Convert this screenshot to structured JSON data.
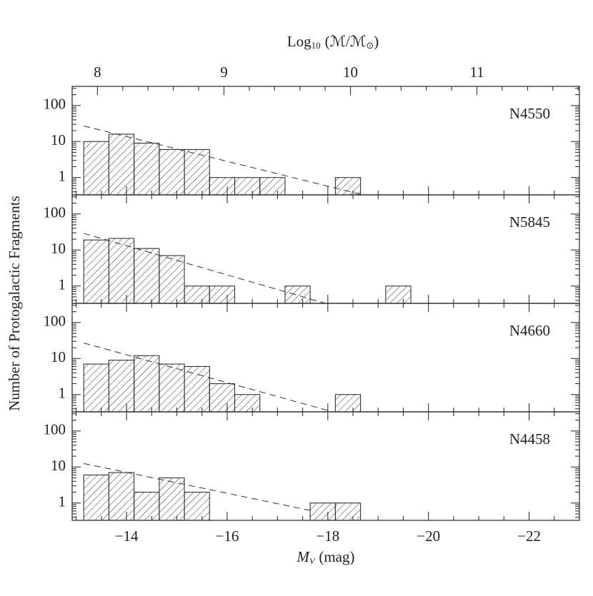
{
  "figure": {
    "y_label": "Number of Protogalactic Fragments",
    "x_label": {
      "main": "M",
      "sub": "V",
      "rest": "(mag)"
    },
    "top_label": {
      "text": "Log",
      "sub": "10",
      "text2": "(ℳ/ℳ",
      "sub2": "⊙",
      "text3": ")"
    },
    "xlim": [
      -12.92,
      -23
    ],
    "xticks": [
      {
        "value": -14,
        "label": "−14"
      },
      {
        "value": -16,
        "label": "−16"
      },
      {
        "value": -18,
        "label": "−18"
      },
      {
        "value": -20,
        "label": "−20"
      },
      {
        "value": -22,
        "label": "−22"
      }
    ],
    "xminorticks": [
      -13,
      -13.5,
      -14.5,
      -15,
      -15.5,
      -16.5,
      -17,
      -17.5,
      -18.5,
      -19,
      -19.5,
      -20.5,
      -21,
      -21.5,
      -22.5
    ],
    "top_xlim": [
      7.8,
      11.81
    ],
    "top_xticks": [
      8,
      9,
      10,
      11
    ],
    "top_xminorticks": [
      8.2,
      8.4,
      8.6,
      8.8,
      9.2,
      9.4,
      9.6,
      9.8,
      10.2,
      10.4,
      10.6,
      10.8,
      11.2,
      11.4,
      11.6,
      11.8
    ],
    "yminorticks": [
      0.4,
      0.5,
      0.6,
      0.7,
      0.8,
      0.9,
      2,
      3,
      4,
      5,
      6,
      7,
      8,
      9,
      20,
      30,
      40,
      50,
      60,
      70,
      80,
      90,
      200,
      300
    ]
  },
  "chart_data": [
    {
      "type": "histogram",
      "label": "N4550",
      "y_log": true,
      "ylim": [
        0.33,
        340
      ],
      "yticks": [
        1,
        10,
        100
      ],
      "bins": [
        -13.15,
        -13.65,
        -14.15,
        -14.65,
        -15.15,
        -15.65,
        -16.15,
        -16.65,
        -17.15,
        -17.65,
        -18.15,
        -18.65
      ],
      "counts": [
        10,
        16,
        9,
        6,
        6,
        1,
        1,
        1,
        0,
        0,
        1
      ],
      "fit": {
        "x": [
          -13.15,
          -18.7
        ],
        "y": [
          27,
          0.33
        ]
      }
    },
    {
      "type": "histogram",
      "label": "N5845",
      "y_log": true,
      "ylim": [
        0.33,
        340
      ],
      "yticks": [
        1,
        10,
        100
      ],
      "bins": [
        -13.15,
        -13.65,
        -14.15,
        -14.65,
        -15.15,
        -15.65,
        -16.15,
        -16.65,
        -17.15,
        -17.65,
        -18.15,
        -18.65,
        -19.15,
        -19.65
      ],
      "counts": [
        19,
        21,
        11,
        7,
        1,
        1,
        0,
        0,
        1,
        0,
        0,
        0,
        1
      ],
      "fit": {
        "x": [
          -13.15,
          -17.95
        ],
        "y": [
          29,
          0.33
        ]
      }
    },
    {
      "type": "histogram",
      "label": "N4660",
      "y_log": true,
      "ylim": [
        0.33,
        340
      ],
      "yticks": [
        1,
        10,
        100
      ],
      "bins": [
        -13.15,
        -13.65,
        -14.15,
        -14.65,
        -15.15,
        -15.65,
        -16.15,
        -16.65,
        -17.15,
        -17.65,
        -18.15,
        -18.65
      ],
      "counts": [
        7,
        9,
        12,
        7,
        6,
        2,
        1,
        0,
        0,
        0,
        1
      ],
      "fit": {
        "x": [
          -13.15,
          -18.1
        ],
        "y": [
          27,
          0.33
        ]
      }
    },
    {
      "type": "histogram",
      "label": "N4458",
      "y_log": true,
      "ylim": [
        0.33,
        340
      ],
      "yticks": [
        1,
        10,
        100
      ],
      "bins": [
        -13.15,
        -13.65,
        -14.15,
        -14.65,
        -15.15,
        -15.65,
        -16.15,
        -16.65,
        -17.15,
        -17.65,
        -18.15,
        -18.65
      ],
      "counts": [
        6,
        7,
        2,
        5,
        2,
        0,
        0,
        0,
        0,
        1,
        1
      ],
      "fit": {
        "x": [
          -13.15,
          -17.7
        ],
        "y": [
          12.5,
          0.6
        ]
      }
    }
  ]
}
